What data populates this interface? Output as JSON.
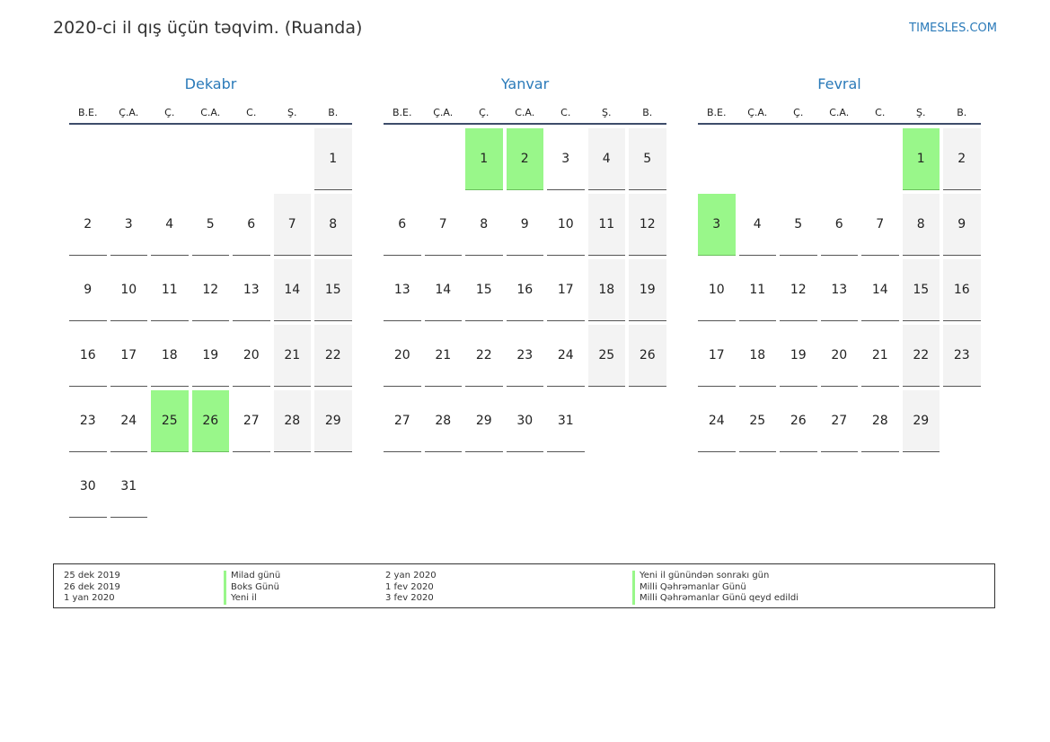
{
  "title": "2020-ci il qış üçün təqvim. (Ruanda)",
  "brand": "TIMESLES.COM",
  "weekdays": [
    "B.E.",
    "Ç.A.",
    "Ç.",
    "C.A.",
    "C.",
    "Ş.",
    "B."
  ],
  "colors": {
    "accent": "#2a7ab9",
    "holiday": "#99f78a",
    "weekend": "#f3f3f3",
    "rule": "#3d4d6a"
  },
  "months": [
    {
      "name": "Dekabr",
      "offset": 6,
      "days": 31,
      "holidays": [
        25,
        26
      ]
    },
    {
      "name": "Yanvar",
      "offset": 2,
      "days": 31,
      "holidays": [
        1,
        2
      ]
    },
    {
      "name": "Fevral",
      "offset": 5,
      "days": 29,
      "holidays": [
        1,
        3
      ]
    }
  ],
  "legend": [
    {
      "date": "25 dek 2019",
      "name": "Milad günü"
    },
    {
      "date": "26 dek 2019",
      "name": "Boks Günü"
    },
    {
      "date": "1 yan 2020",
      "name": "Yeni il"
    },
    {
      "date": "2 yan 2020",
      "name": "Yeni il günündən sonrakı gün"
    },
    {
      "date": "1 fev 2020",
      "name": "Milli Qəhrəmanlar Günü"
    },
    {
      "date": "3 fev 2020",
      "name": "Milli Qəhrəmanlar Günü qeyd edildi"
    }
  ]
}
